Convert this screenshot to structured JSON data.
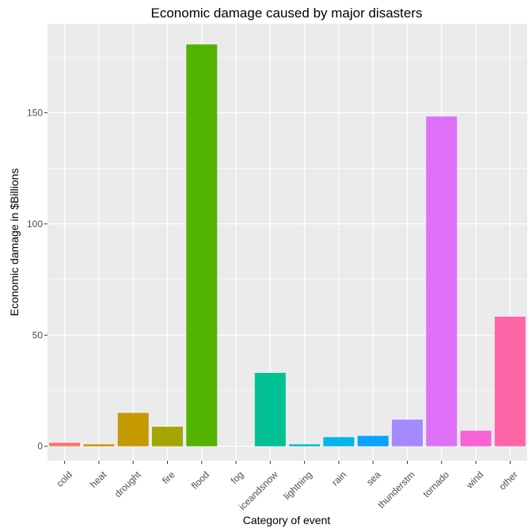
{
  "chart_data": {
    "type": "bar",
    "title": "Economic damage caused by major disasters",
    "xlabel": "Category of event",
    "ylabel": "Economic damage in $Billions",
    "categories": [
      "cold",
      "heat",
      "drought",
      "fire",
      "flood",
      "fog",
      "iceandsnow",
      "lightning",
      "rain",
      "sea",
      "thunderstm",
      "tornado",
      "wind",
      "other"
    ],
    "values": [
      1.6,
      0.9,
      15.0,
      8.8,
      180.7,
      0.0,
      33.0,
      0.9,
      4.1,
      4.7,
      12.0,
      148.3,
      7.0,
      58.3
    ],
    "colors": [
      "#F8766D",
      "#DB8E00",
      "#C49A00",
      "#A3A500",
      "#53B400",
      "#00BA38",
      "#00C094",
      "#00BFC4",
      "#00B6EB",
      "#06A4FF",
      "#A58AFF",
      "#DF70F8",
      "#FB61D7",
      "#FF66A8"
    ],
    "yticks": [
      0,
      50,
      100,
      150
    ],
    "ylim": [
      -6.5,
      190
    ],
    "grid": true,
    "panel_background": "#EBEBEB",
    "grid_color": "#FFFFFF",
    "legend": "none"
  }
}
